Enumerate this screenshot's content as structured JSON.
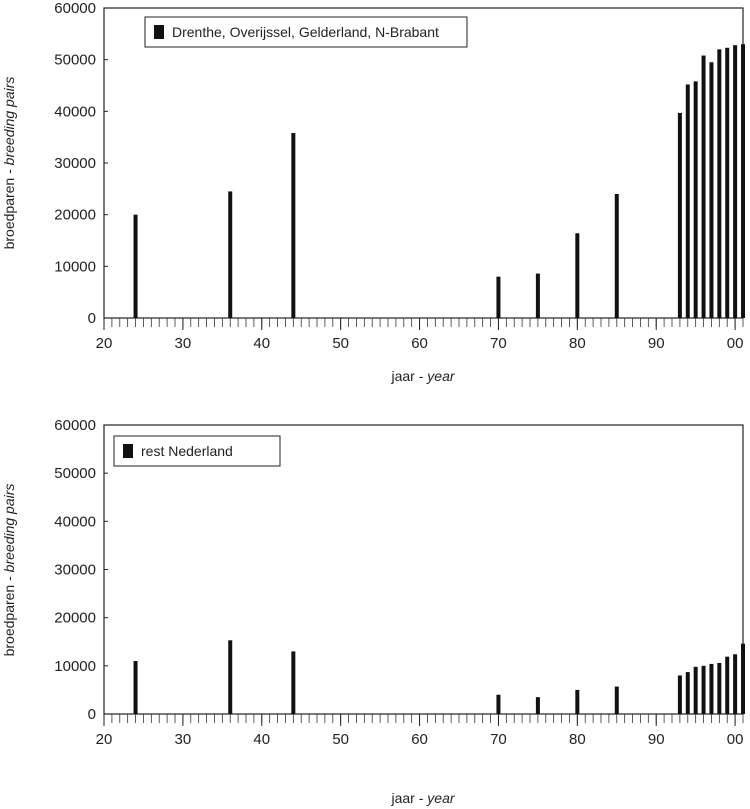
{
  "chart_data": [
    {
      "type": "bar",
      "legend_label": "Drenthe, Overijssel, Gelderland, N-Brabant",
      "legend_position": "top-left",
      "ylabel_regular": "broedparen - ",
      "ylabel_italic": "breeding pairs",
      "xlabel_regular": "jaar - ",
      "xlabel_italic": "year",
      "ylim": [
        0,
        60000
      ],
      "xlim": [
        1920,
        2001
      ],
      "yticks": [
        0,
        10000,
        20000,
        30000,
        40000,
        50000,
        60000
      ],
      "ytick_labels": [
        "0",
        "10000",
        "20000",
        "30000",
        "40000",
        "50000",
        "60000"
      ],
      "xticks": [
        1920,
        1930,
        1940,
        1950,
        1960,
        1970,
        1980,
        1990,
        2000
      ],
      "xtick_labels": [
        "20",
        "30",
        "40",
        "50",
        "60",
        "70",
        "80",
        "90",
        "00"
      ],
      "grid": false,
      "bar_color": "#111111",
      "x": [
        1924,
        1936,
        1944,
        1970,
        1975,
        1980,
        1985,
        1993,
        1994,
        1995,
        1996,
        1997,
        1998,
        1999,
        2000,
        2001
      ],
      "values": [
        20000,
        24500,
        35800,
        8000,
        8600,
        16400,
        24000,
        39700,
        45200,
        45800,
        50800,
        49500,
        52000,
        52300,
        52800,
        53000
      ]
    },
    {
      "type": "bar",
      "legend_label": "rest Nederland",
      "legend_position": "top-left",
      "ylabel_regular": "broedparen - ",
      "ylabel_italic": "breeding pairs",
      "xlabel_regular": "jaar - ",
      "xlabel_italic": "year",
      "ylim": [
        0,
        60000
      ],
      "xlim": [
        1920,
        2001
      ],
      "yticks": [
        0,
        10000,
        20000,
        30000,
        40000,
        50000,
        60000
      ],
      "ytick_labels": [
        "0",
        "10000",
        "20000",
        "30000",
        "40000",
        "50000",
        "60000"
      ],
      "xticks": [
        1920,
        1930,
        1940,
        1950,
        1960,
        1970,
        1980,
        1990,
        2000
      ],
      "xtick_labels": [
        "20",
        "30",
        "40",
        "50",
        "60",
        "70",
        "80",
        "90",
        "00"
      ],
      "grid": false,
      "bar_color": "#111111",
      "x": [
        1924,
        1936,
        1944,
        1970,
        1975,
        1980,
        1985,
        1993,
        1994,
        1995,
        1996,
        1997,
        1998,
        1999,
        2000,
        2001
      ],
      "values": [
        11000,
        15300,
        13000,
        4000,
        3500,
        5000,
        5700,
        8000,
        8700,
        9800,
        10000,
        10400,
        10600,
        11900,
        12400,
        14600
      ]
    }
  ]
}
